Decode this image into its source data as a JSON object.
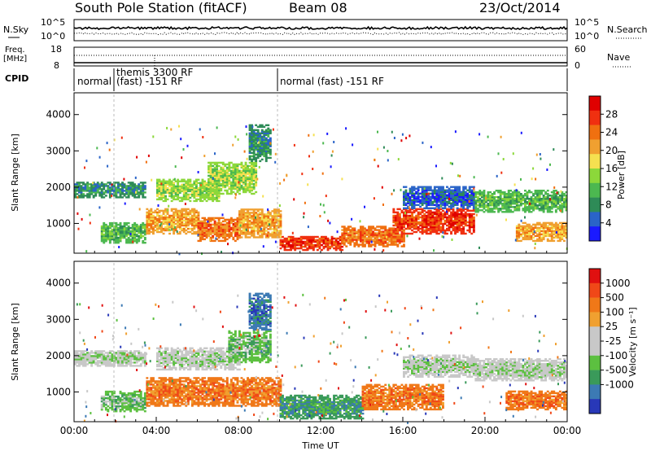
{
  "header": {
    "station": "South Pole Station (fitACF)",
    "beam": "Beam 08",
    "date": "23/Oct/2014"
  },
  "sky_panel": {
    "left_label": "N.Sky",
    "right_label": "N.Search",
    "left_ticks": [
      "10^5",
      "10^0"
    ],
    "right_ticks": [
      "10^5",
      "10^0"
    ]
  },
  "freq_panel": {
    "left_label_1": "Freq.",
    "left_label_2": "[MHz]",
    "left_ticks": [
      "18",
      "8"
    ],
    "right_label": "Nave",
    "right_ticks": [
      "60",
      "0"
    ]
  },
  "cpid": {
    "label": "CPID",
    "segments": [
      {
        "text": "normal",
        "start_h": 0.0
      },
      {
        "text": "themis 3300 RF",
        "start_h": 2.0
      },
      {
        "text": "(fast) -151 RF",
        "start_h": 2.0
      },
      {
        "text": "normal (fast) -151 RF",
        "start_h": 10.0
      }
    ]
  },
  "chart_data": [
    {
      "type": "heatmap",
      "name": "power",
      "ylabel": "Slant Range [km]",
      "x_unit": "hours UT",
      "xlim": [
        0,
        24
      ],
      "ylim": [
        180,
        4600
      ],
      "yticks": [
        "1000",
        "2000",
        "3000",
        "4000"
      ],
      "colorbar": {
        "label": "Power [dB]",
        "ticks": [
          "4",
          "8",
          "12",
          "16",
          "20",
          "24",
          "28"
        ],
        "colors": [
          "#1a1aff",
          "#2a64c8",
          "#2e8b57",
          "#4cb850",
          "#8cd83a",
          "#f5e050",
          "#f0a030",
          "#f07010",
          "#f03010",
          "#e00000"
        ]
      },
      "bands": [
        {
          "t0": 0.0,
          "t1": 3.5,
          "r0": 1700,
          "r1": 2150,
          "level": 2
        },
        {
          "t0": 1.3,
          "t1": 3.5,
          "r0": 450,
          "r1": 1000,
          "level": 3
        },
        {
          "t0": 3.5,
          "t1": 6.0,
          "r0": 700,
          "r1": 1400,
          "level": 6
        },
        {
          "t0": 6.0,
          "t1": 8.0,
          "r0": 500,
          "r1": 1150,
          "level": 7
        },
        {
          "t0": 8.0,
          "t1": 10.0,
          "r0": 600,
          "r1": 1400,
          "level": 6
        },
        {
          "t0": 4.0,
          "t1": 7.0,
          "r0": 1600,
          "r1": 2200,
          "level": 4
        },
        {
          "t0": 6.5,
          "t1": 8.8,
          "r0": 1800,
          "r1": 2700,
          "level": 4
        },
        {
          "t0": 8.5,
          "t1": 9.5,
          "r0": 2700,
          "r1": 3700,
          "level": 2
        },
        {
          "t0": 10.0,
          "t1": 13.0,
          "r0": 250,
          "r1": 650,
          "level": 8
        },
        {
          "t0": 13.0,
          "t1": 16.0,
          "r0": 350,
          "r1": 900,
          "level": 7
        },
        {
          "t0": 15.5,
          "t1": 19.5,
          "r0": 700,
          "r1": 1400,
          "level": 8
        },
        {
          "t0": 16.0,
          "t1": 19.5,
          "r0": 1400,
          "r1": 2000,
          "level": 1
        },
        {
          "t0": 19.5,
          "t1": 24.0,
          "r0": 1300,
          "r1": 1900,
          "level": 3
        },
        {
          "t0": 21.5,
          "t1": 24.0,
          "r0": 500,
          "r1": 1000,
          "level": 6
        }
      ]
    },
    {
      "type": "heatmap",
      "name": "velocity",
      "ylabel": "Slant Range [km]",
      "x_unit": "hours UT",
      "xlim": [
        0,
        24
      ],
      "ylim": [
        180,
        4600
      ],
      "yticks": [
        "1000",
        "2000",
        "3000",
        "4000"
      ],
      "xticks": [
        "00:00",
        "04:00",
        "08:00",
        "12:00",
        "16:00",
        "20:00",
        "00:00"
      ],
      "xlabel": "Time UT",
      "colorbar": {
        "label": "Velocity [m s⁻¹]",
        "ticks": [
          "1000",
          "500",
          "100",
          "25",
          "-25",
          "-100",
          "-500",
          "-1000"
        ],
        "colors": [
          "#2838b8",
          "#3c7ab4",
          "#3a9a5a",
          "#5cc040",
          "#c8c8c8",
          "#c8c8c8",
          "#f0a030",
          "#f07818",
          "#f04818",
          "#e01010"
        ]
      },
      "bands": [
        {
          "t0": 0.0,
          "t1": 3.5,
          "r0": 1700,
          "r1": 2150,
          "level": 4
        },
        {
          "t0": 1.3,
          "t1": 3.5,
          "r0": 450,
          "r1": 1000,
          "level": 3
        },
        {
          "t0": 3.5,
          "t1": 10.0,
          "r0": 600,
          "r1": 1400,
          "level": 7
        },
        {
          "t0": 4.0,
          "t1": 8.0,
          "r0": 1600,
          "r1": 2200,
          "level": 4
        },
        {
          "t0": 7.5,
          "t1": 9.5,
          "r0": 1800,
          "r1": 2700,
          "level": 3
        },
        {
          "t0": 8.5,
          "t1": 9.5,
          "r0": 2700,
          "r1": 3700,
          "level": 1
        },
        {
          "t0": 10.0,
          "t1": 14.0,
          "r0": 250,
          "r1": 900,
          "level": 2
        },
        {
          "t0": 14.0,
          "t1": 18.0,
          "r0": 500,
          "r1": 1200,
          "level": 7
        },
        {
          "t0": 16.0,
          "t1": 19.5,
          "r0": 1400,
          "r1": 2000,
          "level": 4
        },
        {
          "t0": 19.5,
          "t1": 24.0,
          "r0": 1300,
          "r1": 1900,
          "level": 4
        },
        {
          "t0": 21.0,
          "t1": 24.0,
          "r0": 500,
          "r1": 1000,
          "level": 7
        }
      ]
    }
  ]
}
